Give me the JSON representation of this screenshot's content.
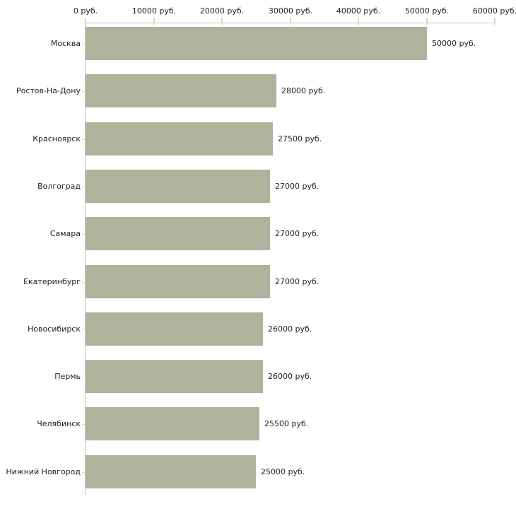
{
  "chart_data": {
    "type": "bar",
    "orientation": "horizontal",
    "title": "",
    "xlabel": "",
    "ylabel": "",
    "unit": "руб.",
    "categories": [
      "Москва",
      "Ростов-На-Дону",
      "Красноярск",
      "Волгоград",
      "Самара",
      "Екатеринбург",
      "Новосибирск",
      "Пермь",
      "Челябинск",
      "Нижний Новгород"
    ],
    "values": [
      50000,
      28000,
      27500,
      27000,
      27000,
      27000,
      26000,
      26000,
      25500,
      25000
    ],
    "value_labels": [
      "50000 руб.",
      "28000 руб.",
      "27500 руб.",
      "27000 руб.",
      "27000 руб.",
      "27000 руб.",
      "26000 руб.",
      "26000 руб.",
      "25500 руб.",
      "25000 руб."
    ],
    "x_axis": {
      "position": "top",
      "min": 0,
      "max": 60000,
      "tick_interval": 10000,
      "tick_values": [
        0,
        10000,
        20000,
        30000,
        40000,
        50000,
        60000
      ],
      "tick_labels": [
        "0 руб.",
        "10000 руб.",
        "20000 руб.",
        "30000 руб.",
        "40000 руб.",
        "50000 руб.",
        "60000 руб."
      ]
    },
    "grid": false,
    "legend": false,
    "colors": {
      "bar_fill": "#aeb39b",
      "axis_line": "#c6c6c6",
      "tick_mark": "#d9dbb5",
      "category_tick": "#d9dbb5",
      "text": "#222222",
      "background": "#ffffff"
    }
  }
}
